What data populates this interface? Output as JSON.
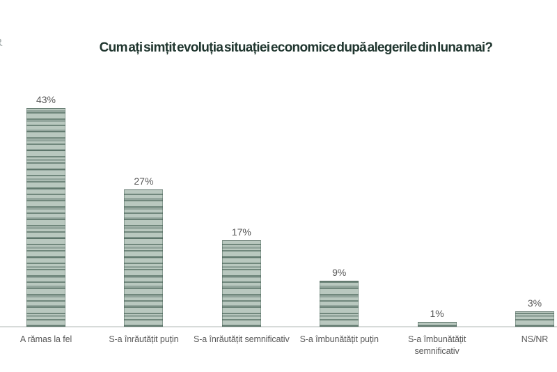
{
  "logo_fragment": {
    "text": "R"
  },
  "chart_data": {
    "type": "bar",
    "title": "Cum ați simțit evoluția situației economice după alegerile din luna mai?",
    "categories": [
      "A rămas la fel",
      "S-a înrăutățit puțin",
      "S-a înrăutățit semnificativ",
      "S-a îmbunătățit puțin",
      "S-a îmbunătățit\nsemnificativ",
      "NS/NR"
    ],
    "values": [
      43,
      27,
      17,
      9,
      1,
      3
    ],
    "value_labels": [
      "43%",
      "27%",
      "17%",
      "9%",
      "1%",
      "3%"
    ],
    "xlabel": "",
    "ylabel": "",
    "ylim": [
      0,
      47
    ],
    "grid": false,
    "legend": false,
    "value_unit": "%",
    "colors": {
      "title": "#20362f",
      "bar_fill": "#b9c8bf",
      "bar_stripe": "#6e8278",
      "labels": "#595959",
      "axis_line": "#d7dbd9",
      "background": "#ffffff"
    }
  }
}
